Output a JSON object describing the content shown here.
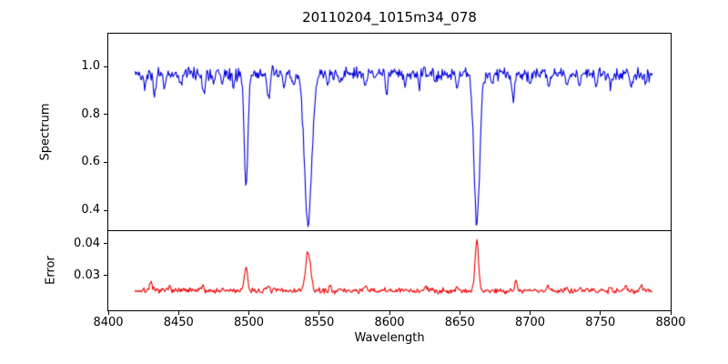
{
  "chart_data": {
    "type": "line",
    "title": "20110204_1015m34_078",
    "xlabel": "Wavelength",
    "xlim": [
      8400,
      8800
    ],
    "x_data_range": [
      8419,
      8787
    ],
    "x_ticks": [
      {
        "value": 8400,
        "label": "8400"
      },
      {
        "value": 8450,
        "label": "8450"
      },
      {
        "value": 8500,
        "label": "8500"
      },
      {
        "value": 8550,
        "label": "8550"
      },
      {
        "value": 8600,
        "label": "8600"
      },
      {
        "value": 8650,
        "label": "8650"
      },
      {
        "value": 8700,
        "label": "8700"
      },
      {
        "value": 8750,
        "label": "8750"
      },
      {
        "value": 8800,
        "label": "8800"
      }
    ],
    "panels": [
      {
        "name": "spectrum",
        "ylabel": "Spectrum",
        "ylim": [
          0.317,
          1.137
        ],
        "y_ticks": [
          {
            "value": 1.0,
            "label": "1.0"
          },
          {
            "value": 0.8,
            "label": "0.8"
          },
          {
            "value": 0.6,
            "label": "0.6"
          },
          {
            "value": 0.4,
            "label": "0.4"
          }
        ],
        "color": "#0000dd",
        "baseline": 0.97,
        "noise_amplitude": 0.038,
        "features": [
          {
            "center": 8498.0,
            "sigma": 1.3,
            "amplitude": -0.47
          },
          {
            "center": 8542.1,
            "sigma": 2.6,
            "amplitude": -0.63
          },
          {
            "center": 8662.1,
            "sigma": 2.0,
            "amplitude": -0.625
          },
          {
            "center": 8426.0,
            "sigma": 0.8,
            "amplitude": -0.05
          },
          {
            "center": 8433.0,
            "sigma": 0.9,
            "amplitude": -0.1
          },
          {
            "center": 8440.0,
            "sigma": 0.8,
            "amplitude": -0.06
          },
          {
            "center": 8452.0,
            "sigma": 0.8,
            "amplitude": -0.05
          },
          {
            "center": 8468.0,
            "sigma": 0.9,
            "amplitude": -0.08
          },
          {
            "center": 8475.0,
            "sigma": 0.8,
            "amplitude": -0.05
          },
          {
            "center": 8481.0,
            "sigma": 0.8,
            "amplitude": -0.05
          },
          {
            "center": 8489.0,
            "sigma": 0.8,
            "amplitude": -0.05
          },
          {
            "center": 8514.0,
            "sigma": 1.0,
            "amplitude": -0.11
          },
          {
            "center": 8525.0,
            "sigma": 0.8,
            "amplitude": -0.06
          },
          {
            "center": 8532.0,
            "sigma": 0.8,
            "amplitude": -0.05
          },
          {
            "center": 8556.0,
            "sigma": 0.8,
            "amplitude": -0.05
          },
          {
            "center": 8565.0,
            "sigma": 0.8,
            "amplitude": -0.04
          },
          {
            "center": 8583.0,
            "sigma": 0.8,
            "amplitude": -0.06
          },
          {
            "center": 8598.0,
            "sigma": 0.9,
            "amplitude": -0.07
          },
          {
            "center": 8611.0,
            "sigma": 0.8,
            "amplitude": -0.05
          },
          {
            "center": 8621.0,
            "sigma": 0.8,
            "amplitude": -0.06
          },
          {
            "center": 8633.0,
            "sigma": 0.8,
            "amplitude": -0.04
          },
          {
            "center": 8648.0,
            "sigma": 0.8,
            "amplitude": -0.05
          },
          {
            "center": 8673.0,
            "sigma": 0.8,
            "amplitude": -0.05
          },
          {
            "center": 8688.0,
            "sigma": 1.0,
            "amplitude": -0.11
          },
          {
            "center": 8700.0,
            "sigma": 0.8,
            "amplitude": -0.04
          },
          {
            "center": 8713.0,
            "sigma": 0.8,
            "amplitude": -0.05
          },
          {
            "center": 8726.0,
            "sigma": 0.8,
            "amplitude": -0.05
          },
          {
            "center": 8735.0,
            "sigma": 0.8,
            "amplitude": -0.06
          },
          {
            "center": 8747.0,
            "sigma": 0.8,
            "amplitude": -0.05
          },
          {
            "center": 8757.0,
            "sigma": 0.8,
            "amplitude": -0.06
          },
          {
            "center": 8772.0,
            "sigma": 0.8,
            "amplitude": -0.06
          },
          {
            "center": 8782.0,
            "sigma": 0.8,
            "amplitude": -0.05
          }
        ]
      },
      {
        "name": "error",
        "ylabel": "Error",
        "ylim": [
          0.019,
          0.044
        ],
        "y_ticks": [
          {
            "value": 0.04,
            "label": "0.04"
          },
          {
            "value": 0.03,
            "label": "0.03"
          }
        ],
        "color": "#ee0000",
        "baseline": 0.0252,
        "noise_amplitude": 0.0013,
        "features": [
          {
            "center": 8498.0,
            "sigma": 1.1,
            "amplitude": 0.0075
          },
          {
            "center": 8542.1,
            "sigma": 1.7,
            "amplitude": 0.0125
          },
          {
            "center": 8662.1,
            "sigma": 1.2,
            "amplitude": 0.016
          },
          {
            "center": 8430.0,
            "sigma": 0.9,
            "amplitude": 0.0028
          },
          {
            "center": 8444.0,
            "sigma": 0.8,
            "amplitude": 0.0018
          },
          {
            "center": 8467.0,
            "sigma": 0.8,
            "amplitude": 0.0018
          },
          {
            "center": 8514.0,
            "sigma": 0.8,
            "amplitude": 0.0016
          },
          {
            "center": 8558.0,
            "sigma": 0.8,
            "amplitude": 0.0013
          },
          {
            "center": 8583.0,
            "sigma": 0.8,
            "amplitude": 0.0012
          },
          {
            "center": 8626.0,
            "sigma": 0.8,
            "amplitude": 0.0013
          },
          {
            "center": 8648.0,
            "sigma": 0.8,
            "amplitude": 0.0012
          },
          {
            "center": 8690.0,
            "sigma": 0.9,
            "amplitude": 0.003
          },
          {
            "center": 8713.0,
            "sigma": 0.8,
            "amplitude": 0.0013
          },
          {
            "center": 8726.0,
            "sigma": 0.8,
            "amplitude": 0.0012
          },
          {
            "center": 8735.0,
            "sigma": 0.8,
            "amplitude": 0.0014
          },
          {
            "center": 8757.0,
            "sigma": 0.8,
            "amplitude": 0.0013
          },
          {
            "center": 8768.0,
            "sigma": 0.8,
            "amplitude": 0.002
          },
          {
            "center": 8779.0,
            "sigma": 0.8,
            "amplitude": 0.0022
          }
        ]
      }
    ]
  }
}
